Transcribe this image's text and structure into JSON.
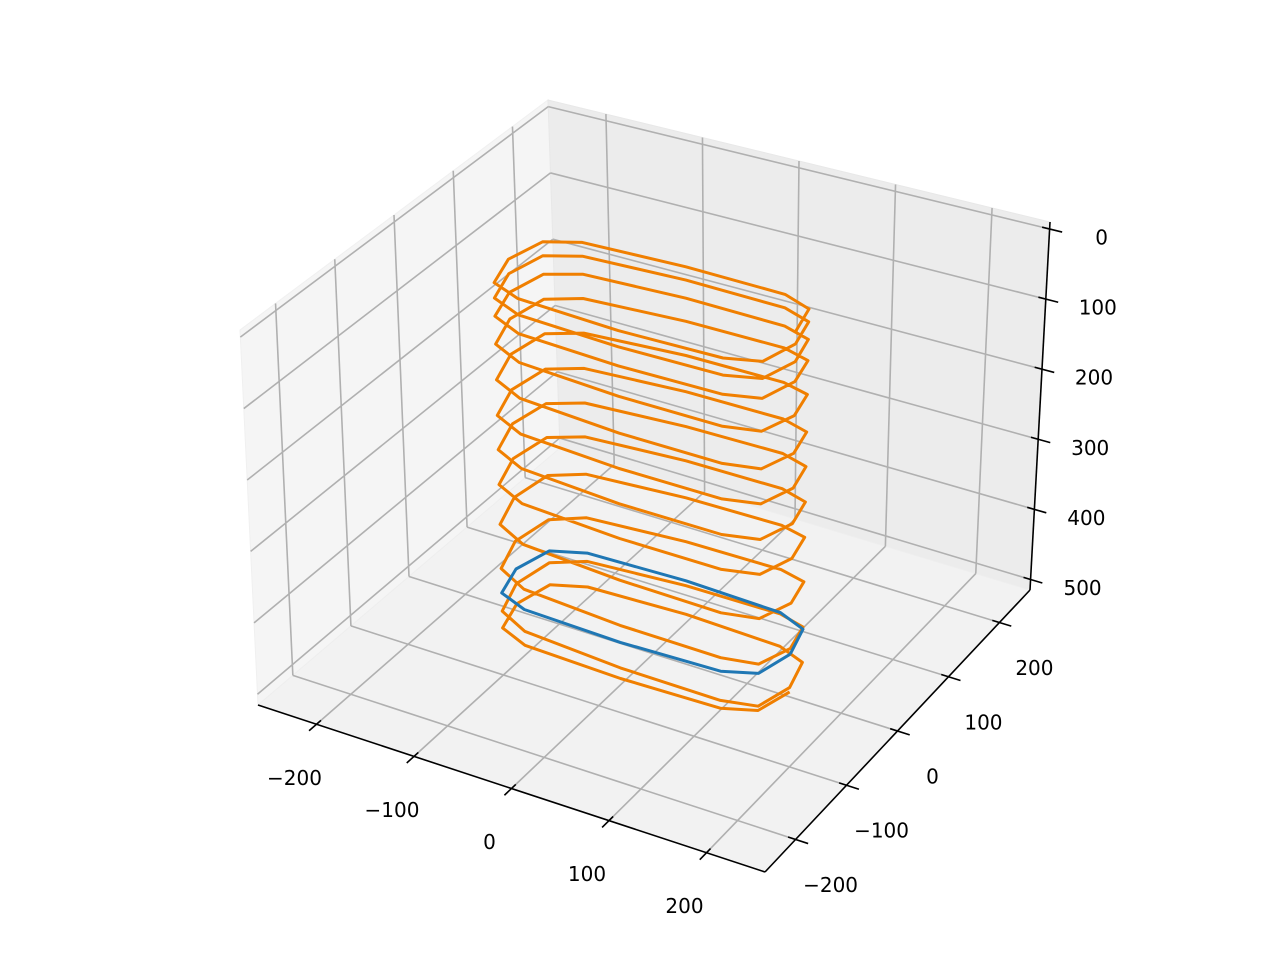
{
  "chart_data": {
    "type": "line3d",
    "xlim": [
      -260,
      260
    ],
    "ylim": [
      -260,
      260
    ],
    "zlim": [
      515,
      -10
    ],
    "xticks": [
      {
        "value": -200,
        "label": "−200"
      },
      {
        "value": -100,
        "label": "−100"
      },
      0,
      100,
      200
    ],
    "yticks": [
      {
        "value": -200,
        "label": "−200"
      },
      {
        "value": -100,
        "label": "−100"
      },
      0,
      100,
      200
    ],
    "zticks": [
      0,
      100,
      200,
      300,
      400,
      500
    ],
    "grid": true,
    "series": [
      {
        "color": "#f07f00",
        "x": [
          145,
          135,
          103,
          0,
          -103,
          -135,
          -145,
          -135,
          -103,
          0,
          103,
          135,
          145,
          135,
          103,
          0,
          -103,
          -135,
          -145,
          -135,
          -103,
          0,
          103,
          135,
          145,
          135,
          103,
          0,
          -103,
          -135,
          -145,
          -135,
          -103,
          0,
          103,
          135,
          145,
          135,
          103,
          0,
          -103,
          -135,
          -145,
          -135,
          -103,
          0,
          103,
          135,
          145,
          135,
          103,
          0,
          -103,
          -135,
          -145,
          -135,
          -103,
          0,
          103,
          135,
          145,
          135,
          103,
          0,
          -103,
          -135,
          -145,
          -135,
          -103,
          0,
          103,
          135,
          145,
          135,
          103,
          0,
          -103,
          -135,
          -145,
          -135,
          -103,
          0,
          103,
          135,
          145,
          135,
          103,
          0,
          -103,
          -135,
          -145,
          -135,
          -103,
          0,
          103,
          135,
          145,
          135,
          103,
          0,
          -103,
          -135,
          -145,
          -135,
          -103,
          0,
          103,
          135,
          145,
          135,
          103,
          0,
          -103,
          -135,
          -145,
          -135,
          -103,
          0,
          103,
          135,
          145,
          135,
          103,
          0,
          -103,
          -135,
          -145,
          -135,
          -103,
          0,
          103,
          135,
          145,
          135,
          103,
          0,
          -103,
          -135,
          -145,
          -135,
          -103,
          0,
          103,
          135,
          145
        ],
        "y": [
          0,
          42,
          56,
          60,
          56,
          42,
          0,
          -42,
          -56,
          -60,
          -56,
          -42,
          0,
          42,
          56,
          60,
          56,
          42,
          0,
          -42,
          -56,
          -60,
          -56,
          -42,
          0,
          42,
          56,
          60,
          56,
          42,
          0,
          -42,
          -56,
          -60,
          -56,
          -42,
          0,
          42,
          56,
          60,
          56,
          42,
          0,
          -42,
          -56,
          -60,
          -56,
          -42,
          0,
          42,
          56,
          60,
          56,
          42,
          0,
          -42,
          -56,
          -60,
          -56,
          -42,
          0,
          42,
          56,
          60,
          56,
          42,
          0,
          -42,
          -56,
          -60,
          -56,
          -42,
          0,
          42,
          56,
          60,
          56,
          42,
          0,
          -42,
          -56,
          -60,
          -56,
          -42,
          0,
          42,
          56,
          60,
          56,
          42,
          0,
          -42,
          -56,
          -60,
          -56,
          -42,
          0,
          42,
          56,
          60,
          56,
          42,
          0,
          -42,
          -56,
          -60,
          -56,
          -42,
          0,
          42,
          56,
          60,
          56,
          42,
          0,
          -42,
          -56,
          -60,
          -56,
          -42,
          0,
          42,
          56,
          60,
          56,
          42,
          0,
          -42,
          -56,
          -60,
          -56,
          -42,
          0,
          42,
          56,
          60,
          56,
          42,
          0,
          -42,
          -56,
          -60,
          -56,
          -42,
          0
        ],
        "z": [
          0,
          2,
          3,
          5,
          6,
          8,
          9,
          11,
          12,
          14,
          15,
          17,
          18,
          20,
          22,
          24,
          26,
          28,
          30,
          33,
          35,
          37,
          39,
          41,
          43,
          45,
          48,
          50,
          52,
          55,
          57,
          59,
          62,
          64,
          66,
          69,
          71,
          75,
          79,
          83,
          87,
          91,
          95,
          99,
          103,
          107,
          111,
          115,
          119,
          123,
          128,
          132,
          137,
          141,
          146,
          150,
          154,
          159,
          163,
          168,
          172,
          176,
          180,
          184,
          188,
          192,
          197,
          201,
          205,
          209,
          213,
          217,
          221,
          225,
          229,
          234,
          238,
          242,
          246,
          250,
          254,
          259,
          263,
          267,
          271,
          275,
          279,
          283,
          287,
          291,
          296,
          300,
          304,
          308,
          312,
          316,
          320,
          325,
          331,
          336,
          341,
          346,
          352,
          357,
          362,
          367,
          373,
          378,
          383,
          388,
          394,
          399,
          404,
          410,
          415,
          420,
          426,
          431,
          436,
          442,
          447,
          452,
          457,
          462,
          467,
          472,
          476,
          481,
          486,
          491,
          496,
          501,
          502,
          502,
          503,
          503,
          504,
          504,
          505,
          505,
          506,
          506,
          507,
          507,
          508
        ]
      },
      {
        "color": "#1f77b4",
        "x": [
          145,
          135,
          103,
          0,
          -103,
          -135,
          -145,
          -135,
          -103,
          0,
          103,
          135,
          145
        ],
        "y": [
          0,
          42,
          56,
          60,
          56,
          42,
          0,
          -42,
          -56,
          -60,
          -56,
          -42,
          0
        ],
        "z": [
          455,
          455,
          455,
          455,
          455,
          455,
          455,
          455,
          455,
          455,
          455,
          455,
          455
        ]
      }
    ]
  }
}
